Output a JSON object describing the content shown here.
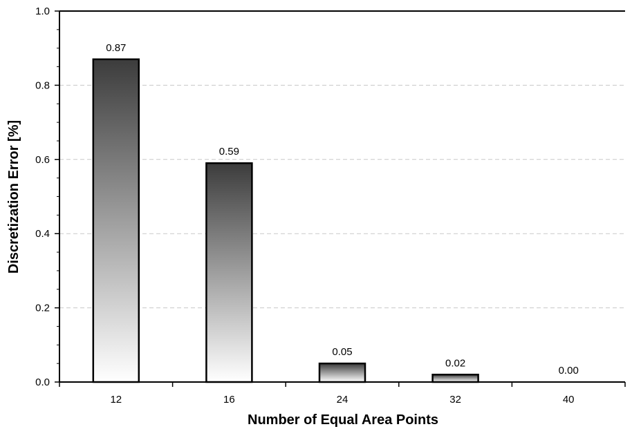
{
  "chart_data": {
    "type": "bar",
    "categories": [
      "12",
      "16",
      "24",
      "32",
      "40"
    ],
    "values": [
      0.87,
      0.59,
      0.05,
      0.02,
      0.0
    ],
    "data_labels": [
      "0.87",
      "0.59",
      "0.05",
      "0.02",
      "0.00"
    ],
    "xlabel": "Number of Equal Area Points",
    "ylabel": "Discretization Error [%]",
    "ylim": [
      0,
      1.0
    ],
    "yticks": [
      "0.0",
      "0.2",
      "0.4",
      "0.6",
      "0.8",
      "1.0"
    ],
    "grid": "horizontal dashed",
    "legend": "none",
    "colors": {
      "bar_top": "#3c3c3c",
      "bar_bottom": "#ffffff",
      "grid": "#c8c8c8",
      "axis": "#000000"
    }
  }
}
